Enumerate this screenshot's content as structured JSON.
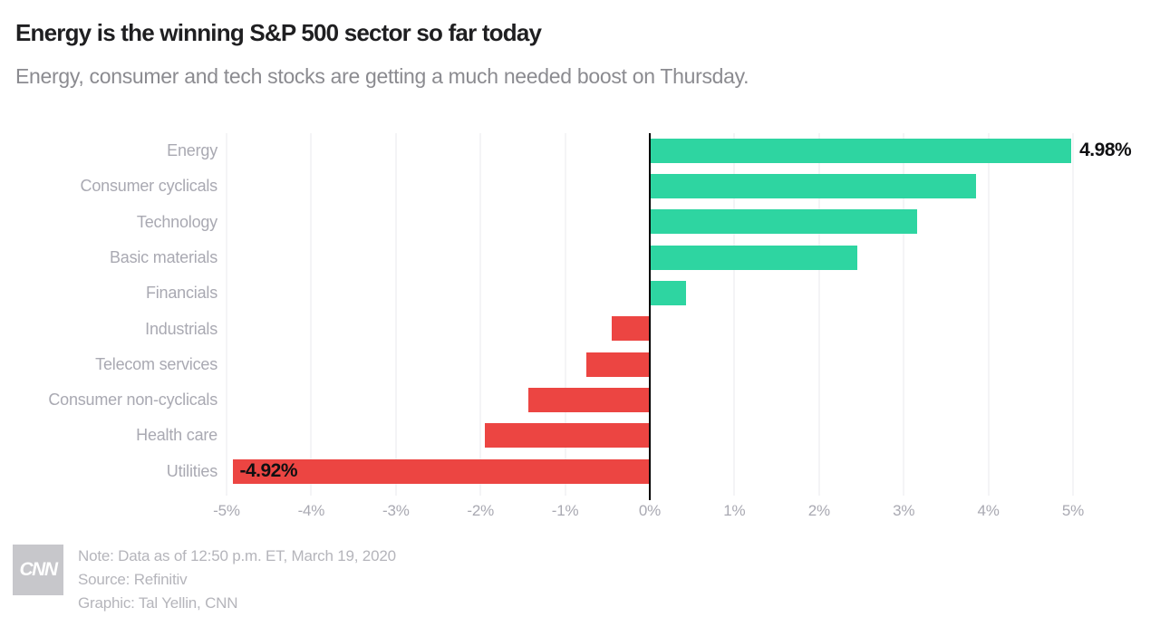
{
  "header": {
    "title": "Energy is the winning S&P 500 sector so far today",
    "subtitle": "Energy, consumer and tech stocks are getting a much needed boost on Thursday."
  },
  "chart_data": {
    "type": "bar",
    "orientation": "horizontal",
    "title": "Energy is the winning S&P 500 sector so far today",
    "categories": [
      "Energy",
      "Consumer cyclicals",
      "Technology",
      "Basic materials",
      "Financials",
      "Industrials",
      "Telecom services",
      "Consumer non-cyclicals",
      "Health care",
      "Utilities"
    ],
    "values": [
      4.98,
      3.85,
      3.16,
      2.45,
      0.43,
      -0.45,
      -0.75,
      -1.44,
      -1.95,
      -4.92
    ],
    "value_labels": {
      "Energy": "4.98%",
      "Utilities": "-4.92%"
    },
    "xlim": [
      -5,
      5
    ],
    "x_ticks": [
      "-5%",
      "-4%",
      "-3%",
      "-2%",
      "-1%",
      "0%",
      "1%",
      "2%",
      "3%",
      "4%",
      "5%"
    ],
    "grid": true,
    "legend": "none",
    "colors": {
      "positive": "#2ed5a1",
      "negative": "#ec4542",
      "axis_line": "#000000",
      "gridline": "#e8e8ec"
    }
  },
  "footer": {
    "logo": "CNN",
    "note": "Note: Data as of 12:50 p.m. ET, March 19, 2020",
    "source": "Source: Refinitiv",
    "credit": "Graphic: Tal Yellin, CNN"
  }
}
